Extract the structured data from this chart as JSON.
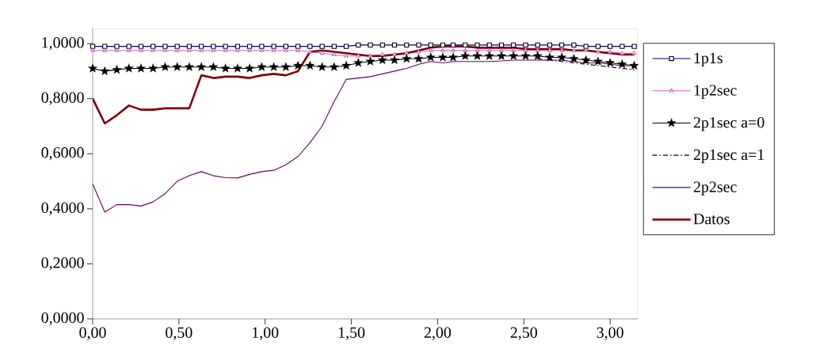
{
  "chart_data": {
    "type": "line",
    "x": [
      0,
      0.07,
      0.14,
      0.21,
      0.28,
      0.35,
      0.42,
      0.49,
      0.56,
      0.63,
      0.7,
      0.77,
      0.84,
      0.91,
      0.98,
      1.05,
      1.12,
      1.19,
      1.26,
      1.33,
      1.4,
      1.47,
      1.54,
      1.61,
      1.68,
      1.75,
      1.82,
      1.89,
      1.96,
      2.03,
      2.09,
      2.16,
      2.23,
      2.3,
      2.37,
      2.44,
      2.51,
      2.58,
      2.65,
      2.72,
      2.79,
      2.86,
      2.93,
      3.0,
      3.07,
      3.14
    ],
    "series": [
      {
        "name": "1p1s",
        "color": "#000080",
        "marker": "square",
        "line_style": "solid",
        "values": [
          0.99,
          0.99,
          0.99,
          0.99,
          0.99,
          0.99,
          0.99,
          0.99,
          0.99,
          0.99,
          0.99,
          0.99,
          0.99,
          0.99,
          0.99,
          0.99,
          0.99,
          0.99,
          0.99,
          0.99,
          0.99,
          0.99,
          0.995,
          0.995,
          0.995,
          0.995,
          0.995,
          0.995,
          0.995,
          0.995,
          0.995,
          0.995,
          0.995,
          0.995,
          0.995,
          0.995,
          0.995,
          0.995,
          0.995,
          0.995,
          0.995,
          0.99,
          0.99,
          0.99,
          0.99,
          0.99
        ]
      },
      {
        "name": "1p2sec",
        "color": "#cc66cc",
        "marker": "triangle",
        "line_style": "solid",
        "values": [
          0.975,
          0.975,
          0.975,
          0.975,
          0.975,
          0.975,
          0.975,
          0.975,
          0.975,
          0.975,
          0.975,
          0.975,
          0.975,
          0.975,
          0.975,
          0.975,
          0.975,
          0.975,
          0.97,
          0.965,
          0.96,
          0.955,
          0.955,
          0.955,
          0.96,
          0.96,
          0.965,
          0.97,
          0.975,
          0.975,
          0.975,
          0.975,
          0.975,
          0.975,
          0.975,
          0.975,
          0.975,
          0.975,
          0.975,
          0.975,
          0.975,
          0.975,
          0.97,
          0.97,
          0.965,
          0.965
        ]
      },
      {
        "name": "2p1sec a=0",
        "color": "#000000",
        "marker": "star",
        "line_style": "solid",
        "values": [
          0.91,
          0.9,
          0.905,
          0.91,
          0.91,
          0.91,
          0.915,
          0.915,
          0.915,
          0.915,
          0.915,
          0.91,
          0.91,
          0.91,
          0.915,
          0.915,
          0.915,
          0.92,
          0.92,
          0.915,
          0.915,
          0.92,
          0.93,
          0.935,
          0.94,
          0.94,
          0.945,
          0.945,
          0.95,
          0.95,
          0.95,
          0.955,
          0.955,
          0.955,
          0.955,
          0.955,
          0.955,
          0.955,
          0.95,
          0.95,
          0.945,
          0.94,
          0.935,
          0.93,
          0.925,
          0.92
        ]
      },
      {
        "name": "2p1sec a=1",
        "color": "#000000",
        "marker": "none",
        "line_style": "dashdot",
        "values": [
          null,
          null,
          null,
          null,
          null,
          null,
          null,
          null,
          null,
          null,
          null,
          null,
          null,
          null,
          null,
          null,
          null,
          null,
          null,
          null,
          null,
          null,
          null,
          null,
          null,
          null,
          null,
          null,
          null,
          null,
          null,
          null,
          null,
          null,
          null,
          null,
          null,
          0.945,
          0.94,
          0.935,
          0.93,
          0.925,
          0.92,
          0.915,
          0.91,
          0.905
        ]
      },
      {
        "name": "2p2sec",
        "color": "#660066",
        "marker": "none",
        "line_style": "solid",
        "values": [
          0.49,
          0.388,
          0.415,
          0.415,
          0.41,
          0.425,
          0.455,
          0.5,
          0.52,
          0.535,
          0.52,
          0.513,
          0.512,
          0.525,
          0.535,
          0.54,
          0.56,
          0.59,
          0.64,
          0.7,
          0.79,
          0.87,
          0.875,
          0.88,
          0.89,
          0.9,
          0.91,
          0.925,
          0.935,
          0.93,
          0.935,
          0.935,
          0.935,
          0.935,
          0.937,
          0.94,
          0.94,
          0.94,
          0.94,
          0.94,
          0.935,
          0.93,
          0.93,
          0.925,
          0.92,
          0.92
        ]
      },
      {
        "name": "Datos",
        "color": "#800000",
        "marker": "none",
        "line_style": "solid",
        "values": [
          0.8,
          0.71,
          0.74,
          0.775,
          0.76,
          0.76,
          0.765,
          0.765,
          0.765,
          0.885,
          0.875,
          0.88,
          0.88,
          0.875,
          0.885,
          0.89,
          0.885,
          0.9,
          0.97,
          0.975,
          0.97,
          0.965,
          0.96,
          0.955,
          0.955,
          0.96,
          0.965,
          0.975,
          0.985,
          0.99,
          0.99,
          0.99,
          0.985,
          0.985,
          0.985,
          0.985,
          0.98,
          0.98,
          0.98,
          0.98,
          0.975,
          0.975,
          0.97,
          0.965,
          0.96,
          0.96
        ]
      }
    ],
    "xlim": [
      0,
      3.16
    ],
    "ylim": [
      0,
      1.055
    ],
    "xticks": [
      {
        "value": 0,
        "label": "0,00"
      },
      {
        "value": 0.5,
        "label": "0,50"
      },
      {
        "value": 1,
        "label": "1,00"
      },
      {
        "value": 1.5,
        "label": "1,50"
      },
      {
        "value": 2,
        "label": "2,00"
      },
      {
        "value": 2.5,
        "label": "2,50"
      },
      {
        "value": 3,
        "label": "3,00"
      }
    ],
    "yticks": [
      {
        "value": 0,
        "label": "0,0000"
      },
      {
        "value": 0.2,
        "label": "0,2000"
      },
      {
        "value": 0.4,
        "label": "0,4000"
      },
      {
        "value": 0.6,
        "label": "0,6000"
      },
      {
        "value": 0.8,
        "label": "0,8000"
      },
      {
        "value": 1,
        "label": "1,0000"
      }
    ],
    "legend": "right"
  }
}
